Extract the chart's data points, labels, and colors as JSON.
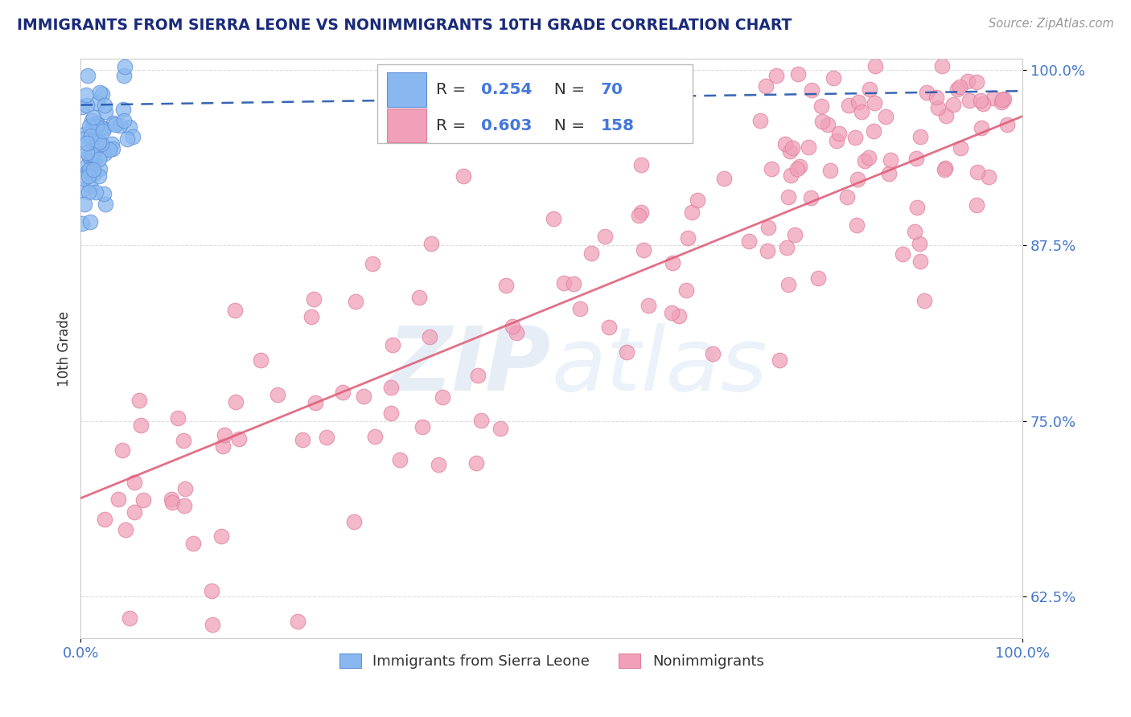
{
  "title": "IMMIGRANTS FROM SIERRA LEONE VS NONIMMIGRANTS 10TH GRADE CORRELATION CHART",
  "source_text": "Source: ZipAtlas.com",
  "ylabel": "10th Grade",
  "xlim": [
    0.0,
    1.0
  ],
  "ylim": [
    0.595,
    1.008
  ],
  "yticks": [
    0.625,
    0.75,
    0.875,
    1.0
  ],
  "ytick_labels": [
    "62.5%",
    "75.0%",
    "87.5%",
    "100.0%"
  ],
  "xtick_labels": [
    "0.0%",
    "100.0%"
  ],
  "blue_color": "#89B8F0",
  "blue_edge_color": "#6090D8",
  "pink_color": "#F0A0B8",
  "pink_edge_color": "#E080A0",
  "blue_line_color": "#2255AA",
  "pink_line_color": "#E0607A",
  "title_color": "#1A2A7A",
  "source_color": "#999999",
  "ylabel_color": "#333333",
  "tick_color": "#4477CC",
  "grid_color": "#DDDDDD",
  "blue_line_start_y": 0.975,
  "blue_line_end_y": 0.985,
  "pink_line_start_y": 0.695,
  "pink_line_end_y": 0.967,
  "watermark_zip_color": "#B0C4DE",
  "watermark_atlas_color": "#C0D4EE",
  "legend_text_color": "#333333",
  "legend_value_color": "#4477DD"
}
